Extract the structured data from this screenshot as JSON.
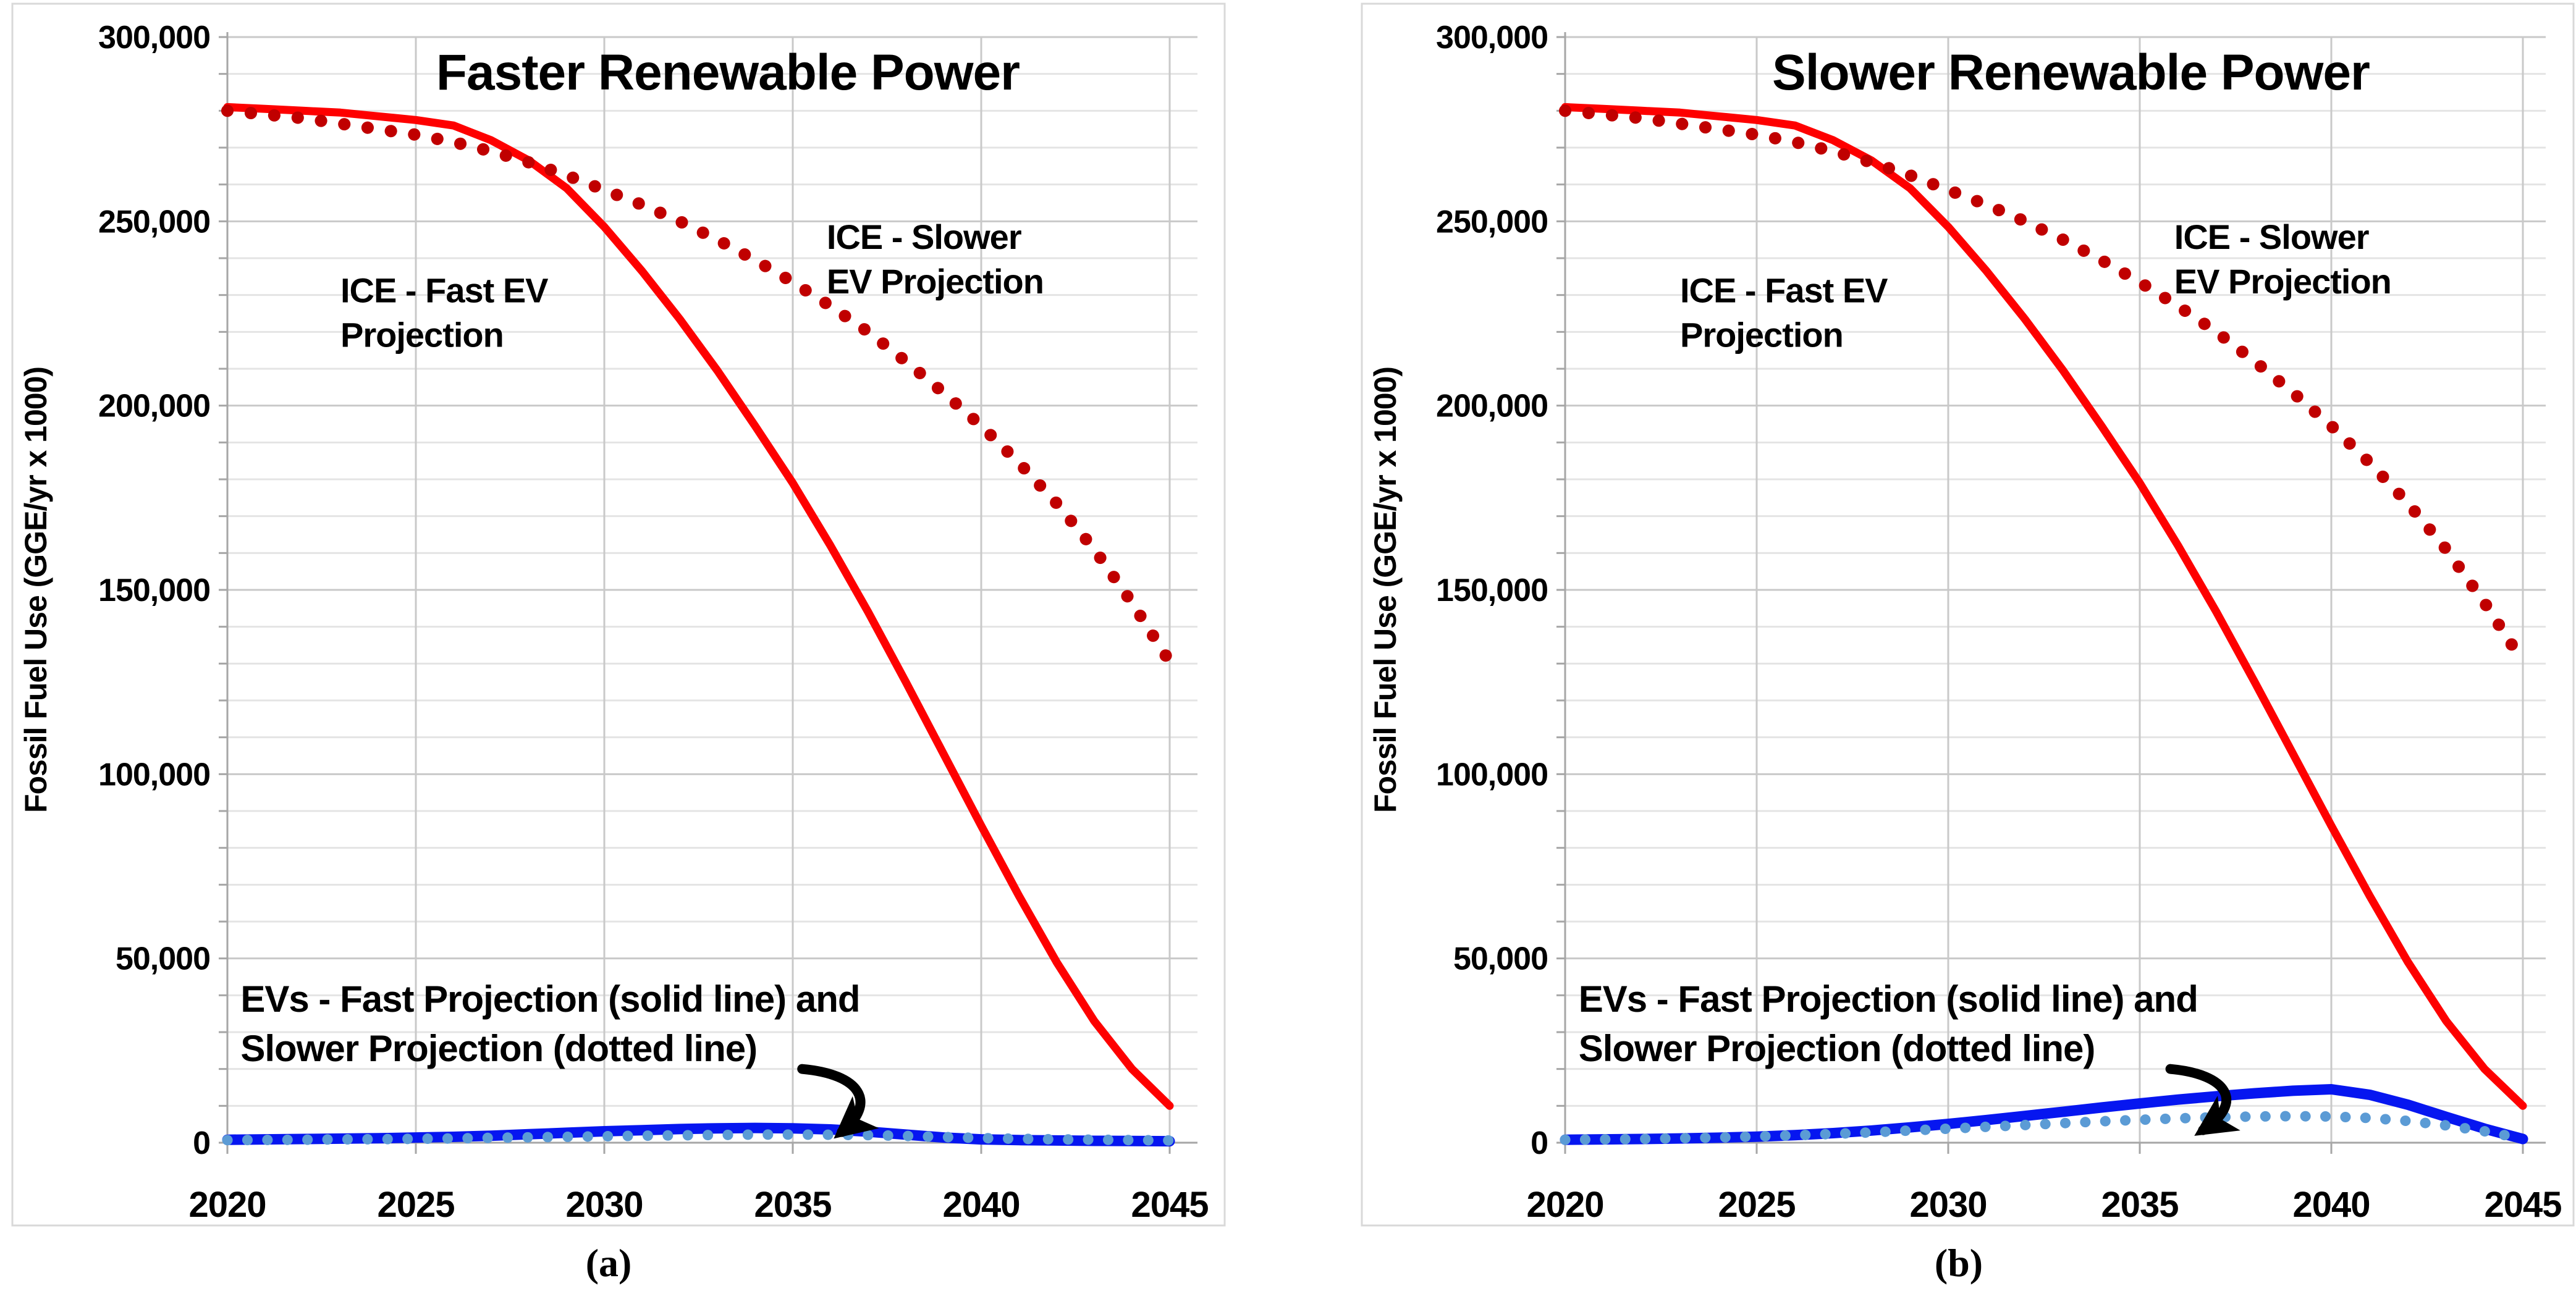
{
  "figure": {
    "caption_a": "(a)",
    "caption_b": "(b)"
  },
  "colors": {
    "ice_fast": "#fe0000",
    "ice_slower": "#c00000",
    "ev_fast": "#0616f0",
    "ev_slower": "#5b9bd5",
    "grid_minor": "#e4e4e4",
    "grid_major": "#c9c9c9",
    "axis": "#a6a6a6",
    "panel_border": "#d9d9d9",
    "text": "#000000",
    "arrow": "#000000"
  },
  "chart_data": [
    {
      "type": "line",
      "title": "Faster Renewable Power",
      "xlabel": "",
      "ylabel": "Fossil Fuel Use (GGE/yr x 1000)",
      "x": [
        2020,
        2021,
        2022,
        2023,
        2024,
        2025,
        2026,
        2027,
        2028,
        2029,
        2030,
        2031,
        2032,
        2033,
        2034,
        2035,
        2036,
        2037,
        2038,
        2039,
        2040,
        2041,
        2042,
        2043,
        2044,
        2045
      ],
      "xlim": [
        2020,
        2045
      ],
      "ylim": [
        0,
        300000
      ],
      "x_tick_labels": [
        "2020",
        "2025",
        "2030",
        "2035",
        "2040",
        "2045"
      ],
      "x_tick_values": [
        2020,
        2025,
        2030,
        2035,
        2040,
        2045
      ],
      "y_tick_labels": [
        "300,000",
        "250,000",
        "200,000",
        "150,000",
        "100,000",
        "50,000",
        "0"
      ],
      "y_tick_values": [
        300000,
        250000,
        200000,
        150000,
        100000,
        50000,
        0
      ],
      "y_minor_step": 10000,
      "grid": "on",
      "legend_position": "none",
      "series": [
        {
          "name": "ICE - Fast EV Projection",
          "style": "solid",
          "color_key": "ice_fast",
          "width": 13,
          "values": [
            281000,
            280500,
            280000,
            279500,
            278500,
            277500,
            276000,
            272000,
            266500,
            259000,
            248500,
            236500,
            223500,
            209500,
            194500,
            179000,
            162000,
            144000,
            125000,
            105500,
            86000,
            67000,
            49000,
            33000,
            20000,
            10000
          ]
        },
        {
          "name": "ICE - Slower EV Projection",
          "style": "dotted",
          "color_key": "ice_slower",
          "width": 20,
          "values": [
            280000,
            279000,
            278000,
            276500,
            275000,
            273500,
            271500,
            269000,
            266000,
            262500,
            258500,
            254500,
            250000,
            245000,
            239500,
            233500,
            227000,
            220000,
            212000,
            203500,
            194500,
            184500,
            173500,
            161000,
            146500,
            130500
          ]
        },
        {
          "name": "EVs - Fast Projection",
          "style": "solid",
          "color_key": "ev_fast",
          "width": 17,
          "values": [
            800,
            900,
            1000,
            1100,
            1200,
            1400,
            1600,
            1900,
            2300,
            2700,
            3100,
            3400,
            3700,
            3900,
            4000,
            3900,
            3600,
            3000,
            2200,
            1400,
            900,
            700,
            600,
            500,
            450,
            400
          ]
        },
        {
          "name": "EVs - Slower Projection",
          "style": "dotted",
          "color_key": "ev_slower",
          "width": 17,
          "values": [
            700,
            750,
            800,
            900,
            950,
            1050,
            1150,
            1300,
            1450,
            1600,
            1750,
            1900,
            2000,
            2100,
            2200,
            2200,
            2150,
            2050,
            1850,
            1550,
            1250,
            1050,
            900,
            800,
            700,
            600
          ]
        }
      ],
      "annotations": {
        "ice_fast_label": {
          "lines": [
            "ICE - Fast EV",
            "Projection"
          ],
          "x": 2023.0,
          "y": 228000
        },
        "ice_slower_label": {
          "lines": [
            "ICE - Slower",
            "EV Projection"
          ],
          "x": 2035.9,
          "y": 242500
        },
        "evs_label": {
          "lines": [
            "EVs - Fast Projection (solid line) and",
            "Slower Projection (dotted line)"
          ],
          "x": 2020.35,
          "y": 35500
        },
        "arrow": {
          "tail": [
            2035.25,
            20000
          ],
          "c1": [
            2036.8,
            18600
          ],
          "c2": [
            2037.25,
            10900
          ],
          "tip": [
            2036.3,
            2900
          ]
        }
      }
    },
    {
      "type": "line",
      "title": "Slower Renewable Power",
      "xlabel": "",
      "ylabel": "Fossil Fuel Use (GGE/yr x 1000)",
      "x": [
        2020,
        2021,
        2022,
        2023,
        2024,
        2025,
        2026,
        2027,
        2028,
        2029,
        2030,
        2031,
        2032,
        2033,
        2034,
        2035,
        2036,
        2037,
        2038,
        2039,
        2040,
        2041,
        2042,
        2043,
        2044,
        2045
      ],
      "xlim": [
        2020,
        2045
      ],
      "ylim": [
        0,
        300000
      ],
      "x_tick_labels": [
        "2020",
        "2025",
        "2030",
        "2035",
        "2040",
        "2045"
      ],
      "x_tick_values": [
        2020,
        2025,
        2030,
        2035,
        2040,
        2045
      ],
      "y_tick_labels": [
        "300,000",
        "250,000",
        "200,000",
        "150,000",
        "100,000",
        "50,000",
        "0"
      ],
      "y_tick_values": [
        300000,
        250000,
        200000,
        150000,
        100000,
        50000,
        0
      ],
      "y_minor_step": 10000,
      "grid": "on",
      "legend_position": "none",
      "series": [
        {
          "name": "ICE - Fast EV Projection",
          "style": "solid",
          "color_key": "ice_fast",
          "width": 13,
          "values": [
            281000,
            280500,
            280000,
            279500,
            278500,
            277500,
            276000,
            272000,
            266500,
            259000,
            248500,
            236500,
            223500,
            209500,
            194500,
            179000,
            162000,
            144000,
            125000,
            105500,
            86000,
            67000,
            49000,
            33000,
            20000,
            10000
          ]
        },
        {
          "name": "ICE - Slower EV Projection",
          "style": "dotted",
          "color_key": "ice_slower",
          "width": 20,
          "values": [
            280000,
            279000,
            278000,
            276500,
            275000,
            273500,
            271500,
            269000,
            266000,
            262500,
            258500,
            254500,
            250000,
            245000,
            239500,
            233500,
            227000,
            220000,
            212000,
            203500,
            194500,
            184500,
            173500,
            161000,
            146500,
            130500
          ]
        },
        {
          "name": "EVs - Fast Projection",
          "style": "solid",
          "color_key": "ev_fast",
          "width": 17,
          "values": [
            800,
            900,
            1000,
            1150,
            1350,
            1650,
            2050,
            2600,
            3300,
            4150,
            5100,
            6150,
            7250,
            8400,
            9550,
            10650,
            11700,
            12600,
            13400,
            14100,
            14500,
            13000,
            10300,
            7000,
            3800,
            1000
          ]
        },
        {
          "name": "EVs - Slower Projection",
          "style": "dotted",
          "color_key": "ev_slower",
          "width": 17,
          "values": [
            800,
            900,
            1000,
            1200,
            1400,
            1700,
            2000,
            2400,
            2800,
            3300,
            3800,
            4300,
            4800,
            5300,
            5800,
            6200,
            6600,
            6900,
            7100,
            7200,
            7100,
            6700,
            5900,
            4700,
            3100,
            1100
          ]
        }
      ],
      "annotations": {
        "ice_fast_label": {
          "lines": [
            "ICE - Fast EV",
            "Projection"
          ],
          "x": 2023.0,
          "y": 228000
        },
        "ice_slower_label": {
          "lines": [
            "ICE - Slower",
            "EV Projection"
          ],
          "x": 2035.9,
          "y": 242500
        },
        "evs_label": {
          "lines": [
            "EVs - Fast Projection (solid line) and",
            "Slower Projection (dotted line)"
          ],
          "x": 2020.35,
          "y": 35500
        },
        "arrow": {
          "tail": [
            2035.8,
            20000
          ],
          "c1": [
            2037.3,
            18600
          ],
          "c2": [
            2037.75,
            10900
          ],
          "tip": [
            2036.65,
            3400
          ]
        }
      }
    }
  ],
  "layout_note": "two side-by-side excel-style line charts"
}
